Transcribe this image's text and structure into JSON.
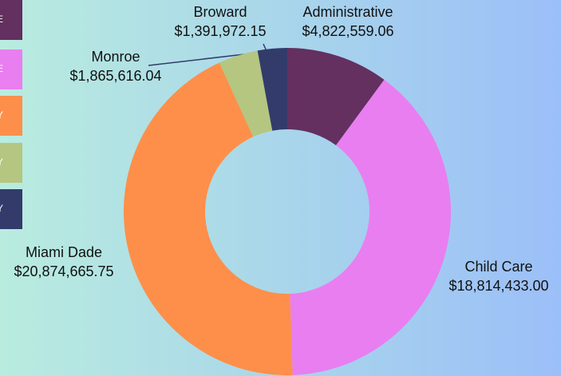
{
  "chart_data": {
    "type": "donut",
    "categories": [
      "Administrative",
      "Child Care",
      "Miami Dade",
      "Monroe",
      "Broward"
    ],
    "values": [
      4822559.06,
      18814433.0,
      20874665.75,
      1865616.04,
      1391972.15
    ],
    "value_labels": [
      "$4,822,559.06",
      "$18,814,433.00",
      "$20,874,665.75",
      "$1,865,616.04",
      "$1,391,972.15"
    ],
    "colors": [
      "#63305f",
      "#e97ef0",
      "#fe8f4a",
      "#b4c680",
      "#333b6b"
    ],
    "legend": [
      "E",
      "E",
      "Y",
      "Y",
      "Y"
    ]
  }
}
